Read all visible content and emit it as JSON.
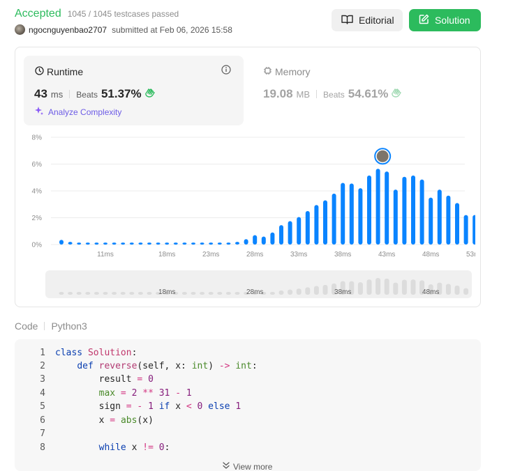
{
  "header": {
    "status": "Accepted",
    "testcases": "1045 / 1045 testcases passed",
    "username": "ngocnguyenbao2707",
    "submitted": "submitted at Feb 06, 2026 15:58",
    "editorial_label": "Editorial",
    "solution_label": "Solution"
  },
  "runtime": {
    "title": "Runtime",
    "value": "43",
    "unit": "ms",
    "beats_label": "Beats",
    "beats_pct": "51.37%",
    "analyze_label": "Analyze Complexity"
  },
  "memory": {
    "title": "Memory",
    "value": "19.08",
    "unit": "MB",
    "beats_label": "Beats",
    "beats_pct": "54.61%"
  },
  "chart_data": {
    "type": "bar",
    "x": [
      6,
      7,
      8,
      9,
      10,
      11,
      12,
      13,
      14,
      15,
      16,
      17,
      18,
      19,
      20,
      21,
      22,
      23,
      24,
      25,
      26,
      27,
      28,
      29,
      30,
      31,
      32,
      33,
      34,
      35,
      36,
      37,
      38,
      39,
      40,
      41,
      42,
      43,
      44,
      45,
      46,
      47,
      48,
      49,
      50,
      51,
      52,
      53
    ],
    "values": [
      0.35,
      0.2,
      0.15,
      0.15,
      0.15,
      0.15,
      0.15,
      0.15,
      0.15,
      0.15,
      0.15,
      0.15,
      0.15,
      0.15,
      0.15,
      0.15,
      0.15,
      0.15,
      0.15,
      0.15,
      0.2,
      0.4,
      0.7,
      0.6,
      0.9,
      1.45,
      1.75,
      2.05,
      2.5,
      2.95,
      3.3,
      3.8,
      4.6,
      4.55,
      4.2,
      5.15,
      5.65,
      5.45,
      4.1,
      5.05,
      5.15,
      4.85,
      3.5,
      4.1,
      3.65,
      3.1,
      2.2,
      2.2
    ],
    "unit_x": "ms",
    "unit_y": "%",
    "ylim": [
      0,
      8
    ],
    "y_ticks": [
      "0%",
      "2%",
      "4%",
      "6%",
      "8%"
    ],
    "x_ticks": [
      "11ms",
      "18ms",
      "23ms",
      "28ms",
      "33ms",
      "38ms",
      "43ms",
      "48ms",
      "53ms"
    ],
    "highlight_x": 43,
    "bar_color": "#0a84ff",
    "grid": true
  },
  "scrubber": {
    "ticks": [
      "18ms",
      "28ms",
      "38ms",
      "48ms"
    ]
  },
  "code": {
    "tab_label": "Code",
    "language": "Python3",
    "view_more": "View more",
    "lines": [
      {
        "n": "1"
      },
      {
        "n": "2"
      },
      {
        "n": "3"
      },
      {
        "n": "4"
      },
      {
        "n": "5"
      },
      {
        "n": "6"
      },
      {
        "n": "7"
      },
      {
        "n": "8"
      }
    ],
    "tokens": {
      "l1_class": "class",
      "l1_name": "Solution",
      "l1_colon": ":",
      "l2_def": "def",
      "l2_fn": "reverse",
      "l2_sig1": "(self, x",
      "l2_colon1": ": ",
      "l2_int1": "int",
      "l2_sig2": ") ",
      "l2_arrow": "->",
      "l2_sp": " ",
      "l2_int2": "int",
      "l2_colon2": ":",
      "l3_a": "result ",
      "l3_eq": "=",
      "l3_sp": " ",
      "l3_0": "0",
      "l4_max": "max",
      "l4_eq": " = ",
      "l4_2": "2",
      "l4_pow": " ** ",
      "l4_31": "31",
      "l4_minus": " - ",
      "l4_1": "1",
      "l5_a": "sign ",
      "l5_eq": "=",
      "l5_minus": " - ",
      "l5_1": "1",
      "l5_if": " if",
      "l5_x": " x ",
      "l5_lt": "<",
      "l5_0": " 0",
      "l5_else": " else",
      "l5_1b": " 1",
      "l6_a": "x ",
      "l6_eq": "=",
      "l6_sp": " ",
      "l6_abs": "abs",
      "l6_rest": "(x)",
      "l8_while": "while",
      "l8_x": " x ",
      "l8_ne": "!=",
      "l8_0": " 0",
      "l8_colon": ":"
    }
  },
  "colors": {
    "accepted": "#2cbb5d",
    "solution_btn": "#2cbb5d",
    "analyze": "#6d5ce6",
    "bar": "#0a84ff"
  }
}
